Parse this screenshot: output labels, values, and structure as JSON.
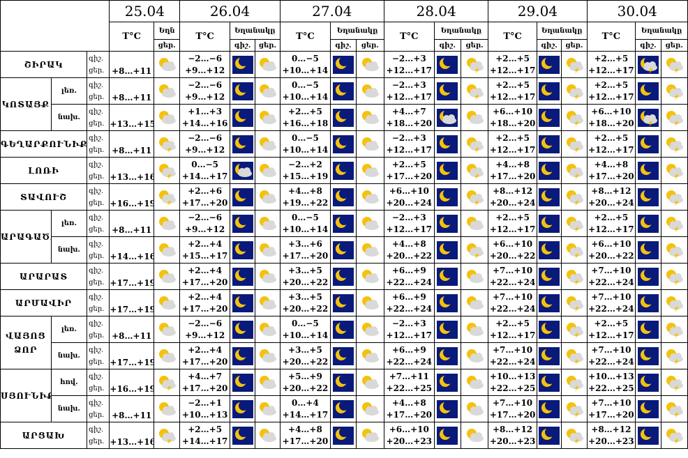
{
  "header": {
    "dates": [
      "25.04",
      "26.04",
      "27.04",
      "28.04",
      "29.04",
      "30.04"
    ],
    "temp_label": "T°C",
    "weather_label": "Եղանակը",
    "weather_label_truncated": "Եղն",
    "night_label": "գիշ.",
    "day_label": "ցեր."
  },
  "icon_legend": {
    "moon": "clear night (moon)",
    "moon_cloud": "night, partly cloudy",
    "moon_storm": "night, thunderstorm",
    "sun_cloud": "day, partly cloudy",
    "sun_storm": "day, thunderstorm",
    "colors": {
      "night_bg": "#0a1a7a",
      "sun": "#f4c20d",
      "cloud": "#d9d9d9"
    }
  },
  "regions": [
    {
      "name": "ՇԻՐԱԿ",
      "rows": [
        {
          "sub": "",
          "d25": "+8…+11",
          "i25": "sun_cloud",
          "n": [
            "−2…−6",
            "0…−5",
            "−2…+3",
            "+2…+5",
            "+2…+5"
          ],
          "d": [
            "+9…+12",
            "+10…+14",
            "+12…+17",
            "+12…+17",
            "+12…+17"
          ],
          "ni": [
            "moon",
            "moon",
            "moon",
            "moon",
            "moon_storm"
          ],
          "di": [
            "sun_cloud",
            "sun_cloud",
            "sun_storm",
            "sun_storm",
            "sun_storm"
          ]
        }
      ]
    },
    {
      "name": "ԿՈՏԱՅՔ",
      "rows": [
        {
          "sub": "լեռ.",
          "d25": "+8…+11",
          "i25": "sun_cloud",
          "n": [
            "−2…−6",
            "0…−5",
            "−2…+3",
            "+2…+5",
            "+2…+5"
          ],
          "d": [
            "+9…+12",
            "+10…+14",
            "+12…+17",
            "+12…+17",
            "+12…+17"
          ],
          "ni": [
            "moon",
            "moon",
            "moon",
            "moon",
            "moon"
          ],
          "di": [
            "sun_cloud",
            "sun_cloud",
            "sun_storm",
            "sun_storm",
            "sun_storm"
          ]
        },
        {
          "sub": "նախ.",
          "d25": "+13…+15",
          "i25": "sun_cloud",
          "n": [
            "+1…+3",
            "+2…+5",
            "+4…+7",
            "+6…+10",
            "+6…+10"
          ],
          "d": [
            "+14…+16",
            "+16…+18",
            "+18…+20",
            "+18…+20",
            "+18…+20"
          ],
          "ni": [
            "moon",
            "moon",
            "moon_cloud",
            "moon",
            "moon_storm"
          ],
          "di": [
            "sun_cloud",
            "sun_cloud",
            "sun_cloud",
            "sun_storm",
            "sun_storm"
          ]
        }
      ]
    },
    {
      "name": "ԳԵՂԱՐՔՈՒՆԻՔ",
      "rows": [
        {
          "sub": "",
          "d25": "+8…+11",
          "i25": "sun_storm",
          "n": [
            "−2…−6",
            "0…−5",
            "−2…+3",
            "+2…+5",
            "+2…+5"
          ],
          "d": [
            "+9…+12",
            "+10…+14",
            "+12…+17",
            "+12…+17",
            "+12…+17"
          ],
          "ni": [
            "moon",
            "moon",
            "moon",
            "moon",
            "moon"
          ],
          "di": [
            "sun_cloud",
            "sun_cloud",
            "sun_storm",
            "sun_storm",
            "sun_storm"
          ]
        }
      ]
    },
    {
      "name": "ԼՈՌԻ",
      "rows": [
        {
          "sub": "",
          "d25": "+13…+16",
          "i25": "sun_storm",
          "n": [
            "0…−5",
            "−2…+2",
            "+2…+5",
            "+4…+8",
            "+4…+8"
          ],
          "d": [
            "+14…+17",
            "+15…+19",
            "+17…+20",
            "+17…+20",
            "+17…+20"
          ],
          "ni": [
            "moon_cloud",
            "moon",
            "moon",
            "moon",
            "moon"
          ],
          "di": [
            "sun_cloud",
            "sun_cloud",
            "sun_storm",
            "sun_storm",
            "sun_storm"
          ]
        }
      ]
    },
    {
      "name": "ՏԱՎՈՒՇ",
      "rows": [
        {
          "sub": "",
          "d25": "+16…+19",
          "i25": "sun_storm",
          "n": [
            "+2…+6",
            "+4…+8",
            "+6…+10",
            "+8…+12",
            "+8…+12"
          ],
          "d": [
            "+17…+20",
            "+19…+22",
            "+20…+24",
            "+20…+24",
            "+20…+24"
          ],
          "ni": [
            "moon",
            "moon",
            "moon",
            "moon",
            "moon"
          ],
          "di": [
            "sun_cloud",
            "sun_cloud",
            "sun_storm",
            "sun_storm",
            "sun_storm"
          ]
        }
      ]
    },
    {
      "name": "ԱՐԱԳԱԾՈՏՆ",
      "rows": [
        {
          "sub": "լեռ.",
          "d25": "+8…+11",
          "i25": "sun_cloud",
          "n": [
            "−2…−6",
            "0…−5",
            "−2…+3",
            "+2…+5",
            "+2…+5"
          ],
          "d": [
            "+9…+12",
            "+10…+14",
            "+12…+17",
            "+12…+17",
            "+12…+17"
          ],
          "ni": [
            "moon",
            "moon",
            "moon",
            "moon",
            "moon"
          ],
          "di": [
            "sun_cloud",
            "sun_cloud",
            "sun_cloud",
            "sun_storm",
            "sun_storm"
          ]
        },
        {
          "sub": "նախ.",
          "d25": "+14…+16",
          "i25": "sun_cloud",
          "n": [
            "+2…+4",
            "+3…+6",
            "+4…+8",
            "+6…+10",
            "+6…+10"
          ],
          "d": [
            "+15…+17",
            "+17…+20",
            "+20…+22",
            "+20…+22",
            "+20…+22"
          ],
          "ni": [
            "moon",
            "moon",
            "moon",
            "moon",
            "moon"
          ],
          "di": [
            "sun_cloud",
            "sun_cloud",
            "sun_storm",
            "sun_storm",
            "sun_storm"
          ]
        }
      ]
    },
    {
      "name": "ԱՐԱՐԱՏ",
      "rows": [
        {
          "sub": "",
          "d25": "+17…+19",
          "i25": "sun_cloud",
          "n": [
            "+2…+4",
            "+3…+5",
            "+6…+9",
            "+7…+10",
            "+7…+10"
          ],
          "d": [
            "+17…+20",
            "+20…+22",
            "+22…+24",
            "+22…+24",
            "+22…+24"
          ],
          "ni": [
            "moon",
            "moon",
            "moon",
            "moon",
            "moon"
          ],
          "di": [
            "sun_cloud",
            "sun_cloud",
            "sun_cloud",
            "sun_storm",
            "sun_storm"
          ]
        }
      ]
    },
    {
      "name": "ԱՐՄԱՎԻՐ",
      "rows": [
        {
          "sub": "",
          "d25": "+17…+19",
          "i25": "sun_cloud",
          "n": [
            "+2…+4",
            "+3…+5",
            "+6…+9",
            "+7…+10",
            "+7…+10"
          ],
          "d": [
            "+17…+20",
            "+20…+22",
            "+22…+24",
            "+22…+24",
            "+22…+24"
          ],
          "ni": [
            "moon",
            "moon",
            "moon",
            "moon",
            "moon"
          ],
          "di": [
            "sun_cloud",
            "sun_cloud",
            "sun_cloud",
            "sun_storm",
            "sun_storm"
          ]
        }
      ]
    },
    {
      "name": "ՎԱՅՈՑ ՁՈՐ",
      "rows": [
        {
          "sub": "լեռ.",
          "d25": "+8…+11",
          "i25": "sun_cloud",
          "n": [
            "−2…−6",
            "0…−5",
            "−2…+3",
            "+2…+5",
            "+2…+5"
          ],
          "d": [
            "+9…+12",
            "+10…+14",
            "+12…+17",
            "+12…+17",
            "+12…+17"
          ],
          "ni": [
            "moon",
            "moon",
            "moon",
            "moon",
            "moon"
          ],
          "di": [
            "sun_cloud",
            "sun_cloud",
            "sun_cloud",
            "sun_storm",
            "sun_storm"
          ]
        },
        {
          "sub": "նախ.",
          "d25": "+17…+19",
          "i25": "sun_cloud",
          "n": [
            "+2…+4",
            "+3…+5",
            "+6…+9",
            "+7…+10",
            "+7…+10"
          ],
          "d": [
            "+17…+20",
            "+20…+22",
            "+22…+24",
            "+22…+24",
            "+22…+24"
          ],
          "ni": [
            "moon",
            "moon",
            "moon",
            "moon",
            "moon"
          ],
          "di": [
            "sun_cloud",
            "sun_cloud",
            "sun_cloud",
            "sun_storm",
            "sun_storm"
          ]
        }
      ]
    },
    {
      "name": "ՍՅՈՒՆԻՔ",
      "rows": [
        {
          "sub": "հով.",
          "d25": "+16…+19",
          "i25": "sun_storm",
          "n": [
            "+4…+7",
            "+5…+9",
            "+7…+11",
            "+10…+13",
            "+10…+13"
          ],
          "d": [
            "+17…+20",
            "+20…+22",
            "+22…+25",
            "+22…+25",
            "+22…+25"
          ],
          "ni": [
            "moon",
            "moon",
            "moon",
            "moon",
            "moon"
          ],
          "di": [
            "sun_cloud",
            "sun_cloud",
            "sun_cloud",
            "sun_storm",
            "sun_storm"
          ]
        },
        {
          "sub": "նախ.",
          "d25": "+8…+11",
          "i25": "sun_cloud",
          "n": [
            "−2…+1",
            "0…+4",
            "+4…+8",
            "+7…+10",
            "+7…+10"
          ],
          "d": [
            "+10…+13",
            "+14…+17",
            "+17…+20",
            "+17…+20",
            "+17…+20"
          ],
          "ni": [
            "moon",
            "moon",
            "moon",
            "moon",
            "moon"
          ],
          "di": [
            "sun_cloud",
            "sun_cloud",
            "sun_cloud",
            "sun_storm",
            "sun_storm"
          ]
        }
      ]
    },
    {
      "name": "ԱՐՑԱԽ",
      "rows": [
        {
          "sub": "",
          "d25": "+13…+16",
          "i25": "sun_storm",
          "n": [
            "+2…+5",
            "+4…+8",
            "+6…+10",
            "+8…+12",
            "+8…+12"
          ],
          "d": [
            "+14…+17",
            "+17…+20",
            "+20…+23",
            "+20…+23",
            "+20…+23"
          ],
          "ni": [
            "moon",
            "moon",
            "moon",
            "moon",
            "moon"
          ],
          "di": [
            "sun_cloud",
            "sun_cloud",
            "sun_cloud",
            "sun_storm",
            "sun_storm"
          ]
        }
      ]
    }
  ]
}
